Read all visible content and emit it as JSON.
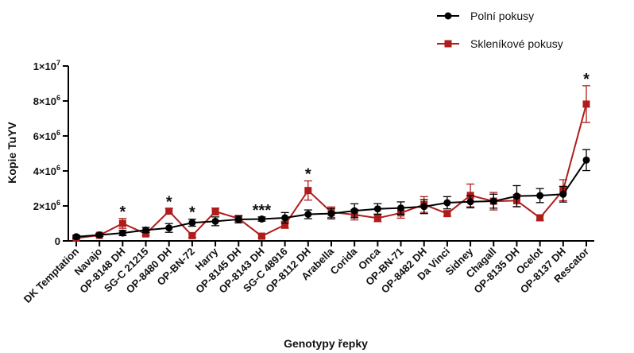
{
  "chart_data": {
    "type": "line",
    "xlabel": "Genotypy řepky",
    "ylabel": "Kopie TuYV",
    "ylim": [
      0,
      10000000
    ],
    "yticks": [
      0,
      2000000,
      4000000,
      6000000,
      8000000,
      10000000
    ],
    "ytick_labels": [
      "0",
      "2×10",
      "4×10",
      "6×10",
      "8×10",
      "1×10"
    ],
    "ytick_exponents": [
      "",
      "6",
      "6",
      "6",
      "6",
      "7"
    ],
    "grid": false,
    "legend_position": "top-right",
    "categories": [
      "DK Temptation",
      "Navajo",
      "OP-8148 DH",
      "SG-C 21215",
      "OP-8480 DH",
      "OP-BN-72",
      "Harry",
      "OP-8145 DH",
      "OP-8143 DH",
      "SG-C 48916",
      "OP-8112 DH",
      "Arabella",
      "Corida",
      "Onca",
      "OP-BN-71",
      "OP-8482 DH",
      "Da Vinci",
      "Sidney",
      "Chagall",
      "OP-8135 DH",
      "Ocelot",
      "OP-8137 DH",
      "Rescator"
    ],
    "series": [
      {
        "name": "Polní pokusy",
        "color": "#000000",
        "marker": "circle",
        "values": [
          240000,
          340000,
          450000,
          620000,
          740000,
          1040000,
          1120000,
          1230000,
          1250000,
          1320000,
          1520000,
          1560000,
          1720000,
          1830000,
          1880000,
          1960000,
          2180000,
          2240000,
          2270000,
          2560000,
          2590000,
          2670000,
          4620000
        ],
        "errors": [
          80000,
          80000,
          150000,
          150000,
          250000,
          200000,
          250000,
          200000,
          120000,
          300000,
          250000,
          300000,
          400000,
          300000,
          350000,
          400000,
          350000,
          350000,
          400000,
          600000,
          400000,
          450000,
          600000
        ]
      },
      {
        "name": "Skleníkové pokusy",
        "color": "#b01c1c",
        "marker": "square",
        "values": [
          160000,
          320000,
          1000000,
          400000,
          1700000,
          300000,
          1680000,
          1280000,
          270000,
          920000,
          2880000,
          1640000,
          1500000,
          1300000,
          1600000,
          2080000,
          1560000,
          2600000,
          2270000,
          2300000,
          1320000,
          2900000,
          7820000
        ],
        "errors": [
          60000,
          60000,
          280000,
          100000,
          150000,
          100000,
          200000,
          150000,
          80000,
          200000,
          550000,
          300000,
          300000,
          200000,
          300000,
          450000,
          150000,
          650000,
          500000,
          350000,
          150000,
          600000,
          1050000
        ]
      }
    ],
    "annotations": [
      {
        "category": "OP-8148 DH",
        "text": "*"
      },
      {
        "category": "OP-8480 DH",
        "text": "*"
      },
      {
        "category": "OP-BN-72",
        "text": "*"
      },
      {
        "category": "OP-8143 DH",
        "text": "***"
      },
      {
        "category": "OP-8112 DH",
        "text": "*"
      },
      {
        "category": "Rescator",
        "text": "*"
      }
    ]
  }
}
